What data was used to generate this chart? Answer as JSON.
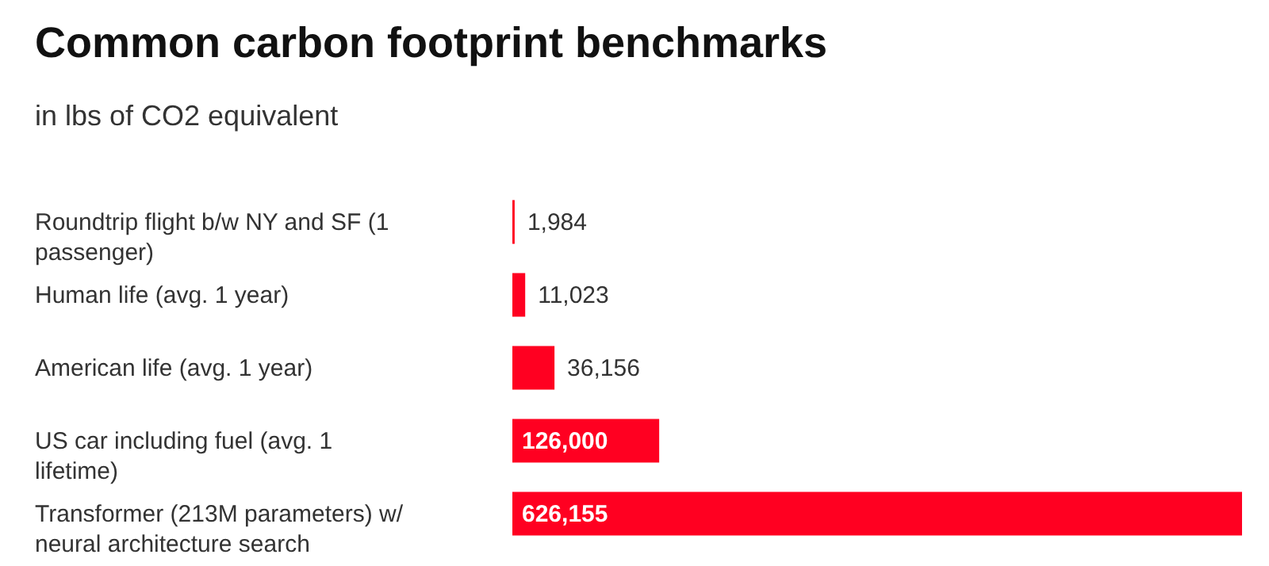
{
  "chart_data": {
    "type": "bar",
    "orientation": "horizontal",
    "title": "Common carbon footprint benchmarks",
    "subtitle": "in lbs of CO2 equivalent",
    "categories": [
      "Roundtrip flight b/w NY and SF (1 passenger)",
      "Human life (avg. 1 year)",
      "American life (avg. 1 year)",
      "US car including fuel (avg. 1 lifetime)",
      "Transformer (213M parameters) w/ neural architecture search"
    ],
    "values": [
      1984,
      11023,
      36156,
      126000,
      626155
    ],
    "value_labels": [
      "1,984",
      "11,023",
      "36,156",
      "126,000",
      "626,155"
    ],
    "color": "#ff0021"
  }
}
